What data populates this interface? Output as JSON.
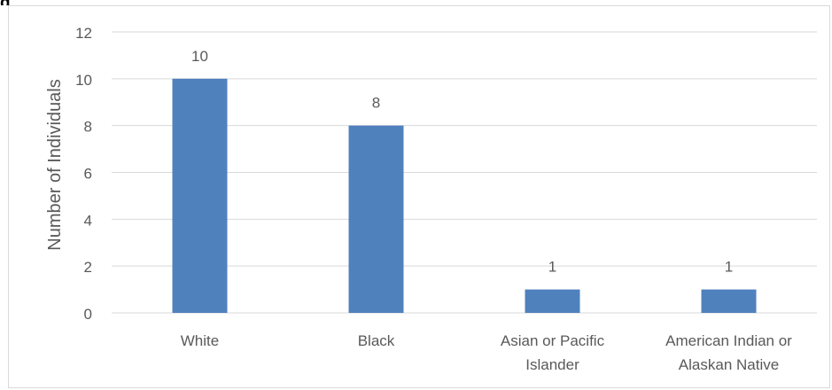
{
  "header_fragment": "g",
  "chart_data": {
    "type": "bar",
    "categories": [
      [
        "White"
      ],
      [
        "Black"
      ],
      [
        "Asian or Pacific",
        "Islander"
      ],
      [
        "American Indian or",
        "Alaskan Native"
      ]
    ],
    "values": [
      10,
      8,
      1,
      1
    ],
    "data_labels": [
      "10",
      "8",
      "1",
      "1"
    ],
    "ylabel": "Number of Individuals",
    "xlabel": "",
    "title": "",
    "ylim": [
      0,
      12
    ],
    "yticks": [
      0,
      2,
      4,
      6,
      8,
      10,
      12
    ],
    "grid": true,
    "legend": "none",
    "bar_color": "#4f81bd",
    "gridline_color": "#d9d9d9",
    "text_color": "#595959"
  }
}
